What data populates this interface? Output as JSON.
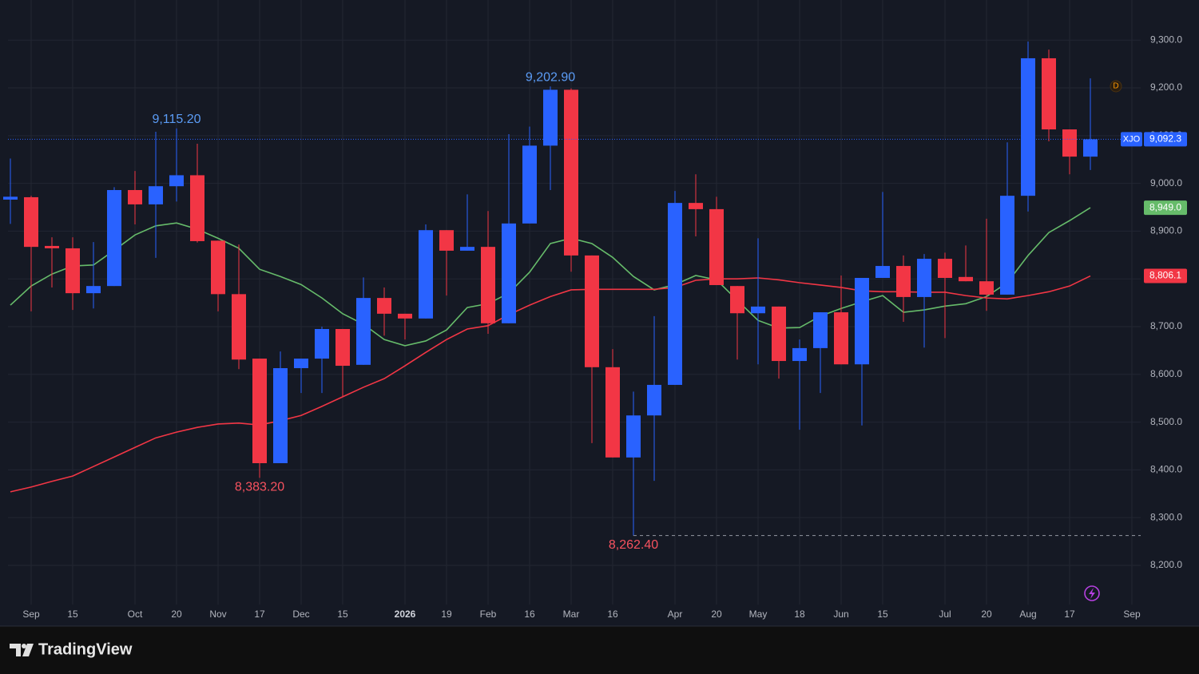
{
  "chart_data": {
    "type": "candlestick",
    "symbol": "XJO",
    "price_label": "9,092.3",
    "up_color": "#2962ff",
    "down_color": "#f23645",
    "grid": true,
    "categories": [
      null,
      "Sep",
      null,
      "15",
      null,
      null,
      "Oct",
      null,
      "20",
      null,
      "Nov",
      null,
      "17",
      null,
      "Dec",
      null,
      "15",
      null,
      null,
      "2026",
      null,
      "19",
      null,
      "Feb",
      null,
      "16",
      null,
      "Mar",
      null,
      "16",
      null,
      null,
      "Apr",
      null,
      "20",
      null,
      "May",
      null,
      "18",
      null,
      "Jun",
      null,
      "15",
      null,
      null,
      "Jul",
      null,
      "20",
      null,
      "Aug",
      null,
      "17",
      null,
      null,
      "Sep"
    ],
    "open": [
      8966,
      8971,
      8869,
      8864,
      8770,
      8785,
      8986,
      8956,
      8994,
      9017,
      8880,
      8768,
      8633,
      8414,
      8613,
      8633,
      8695,
      8620,
      8760,
      8727,
      8717,
      8902,
      8859,
      8867,
      8707,
      8916,
      9079,
      9196,
      8849,
      8615,
      8426,
      8514,
      8578,
      8959,
      8946,
      8785,
      8728,
      8742,
      8628,
      8655,
      8730,
      8621,
      8802,
      8827,
      8762,
      8842,
      8804,
      8795,
      8767,
      8974,
      9262,
      9113,
      9056,
      null,
      null
    ],
    "high": [
      9052,
      8974,
      8887,
      8887,
      8877,
      8992,
      9026,
      9108,
      9115.2,
      9083,
      8880,
      8872,
      8633,
      8648,
      8633,
      8700,
      8695,
      8803,
      8782,
      8727,
      8914,
      8902,
      8977,
      8942,
      9103,
      9119,
      9202.9,
      9199,
      8849,
      8653,
      8564,
      8722,
      8984,
      9019,
      8972,
      8785,
      8885,
      8742,
      8673,
      8730,
      8807,
      8802,
      8982,
      8849,
      8852,
      8855,
      8870,
      8926,
      9086,
      9297,
      9280,
      9113,
      9220,
      null,
      null
    ],
    "low": [
      8915,
      8732,
      8782,
      8735,
      8738,
      8785,
      8914,
      8844,
      8962,
      8876,
      8732,
      8611,
      8383.2,
      8414,
      8561,
      8561,
      8553,
      8620,
      8681,
      8673,
      8717,
      8765,
      8859,
      8685,
      8707,
      8916,
      8986,
      8815,
      8456,
      8426,
      8262.4,
      8377,
      8578,
      8889,
      8787,
      8631,
      8621,
      8591,
      8484,
      8561,
      8621,
      8493,
      8802,
      8710,
      8656,
      8676,
      8795,
      8733,
      8767,
      8941,
      9088,
      9019,
      9028,
      null,
      null
    ],
    "close": [
      8972,
      8867,
      8864,
      8770,
      8785,
      8986,
      8956,
      8994,
      9017,
      8879,
      8768,
      8631,
      8414,
      8613,
      8633,
      8695,
      8618,
      8760,
      8727,
      8717,
      8902,
      8859,
      8867,
      8707,
      8916,
      9079,
      9196,
      8849,
      8615,
      8426,
      8514,
      8578,
      8959,
      8946,
      8787,
      8728,
      8742,
      8628,
      8655,
      8730,
      8621,
      8802,
      8827,
      8762,
      8842,
      8802,
      8795,
      8767,
      8974,
      9262,
      9113,
      9056,
      9092.3,
      null,
      null
    ],
    "series": [
      {
        "color": "#66bb6a",
        "price_label": "8,949.0",
        "values": [
          8745,
          8785,
          8810,
          8827,
          8829,
          8860,
          8892,
          8911,
          8917,
          8904,
          8885,
          8864,
          8820,
          8805,
          8788,
          8760,
          8727,
          8705,
          8673,
          8660,
          8670,
          8693,
          8740,
          8748,
          8770,
          8814,
          8874,
          8885,
          8874,
          8845,
          8805,
          8777,
          8788,
          8807,
          8798,
          8755,
          8713,
          8697,
          8698,
          8722,
          8738,
          8752,
          8765,
          8730,
          8735,
          8743,
          8748,
          8763,
          8792,
          8849,
          8897,
          8922,
          8949,
          null,
          null
        ]
      },
      {
        "color": "#f23645",
        "price_label": "8,806.1",
        "values": [
          8354,
          8364,
          8376,
          8387,
          8407,
          8427,
          8447,
          8467,
          8479,
          8489,
          8496,
          8498,
          8494,
          8503,
          8514,
          8533,
          8553,
          8573,
          8591,
          8618,
          8646,
          8673,
          8695,
          8702,
          8725,
          8745,
          8763,
          8777,
          8778,
          8778,
          8778,
          8778,
          8782,
          8797,
          8800,
          8800,
          8802,
          8798,
          8792,
          8787,
          8782,
          8775,
          8773,
          8773,
          8772,
          8772,
          8765,
          8760,
          8758,
          8765,
          8773,
          8785,
          8806.1,
          null,
          null
        ]
      }
    ],
    "annotations": [
      {
        "value": 9115.2,
        "label": "9,115.20"
      },
      {
        "value": 9202.9,
        "label": "9,202.90"
      },
      {
        "value": 8383.2,
        "label": "8,383.20"
      },
      {
        "value": 8262.4,
        "label": "8,262.40"
      }
    ],
    "event_marker": "D",
    "ylim": [
      8118,
      9384
    ],
    "yticks": [
      {
        "value": 8200,
        "label": "8,200.0"
      },
      {
        "value": 8300,
        "label": "8,300.0"
      },
      {
        "value": 8400,
        "label": "8,400.0"
      },
      {
        "value": 8500,
        "label": "8,500.0"
      },
      {
        "value": 8600,
        "label": "8,600.0"
      },
      {
        "value": 8700,
        "label": "8,700.0"
      },
      {
        "value": 8800,
        "label": "8,800.0"
      },
      {
        "value": 8900,
        "label": "8,900.0"
      },
      {
        "value": 9000,
        "label": "9,000.0"
      },
      {
        "value": 9100,
        "label": "9,100.0"
      },
      {
        "value": 9200,
        "label": "9,200.0"
      },
      {
        "value": 9300,
        "label": "9,300.0"
      }
    ]
  },
  "brand": "TradingView"
}
